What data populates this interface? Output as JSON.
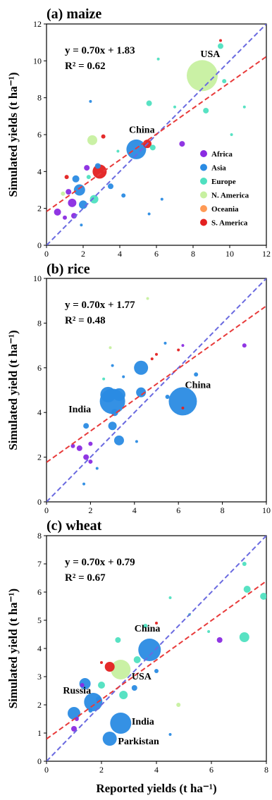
{
  "colors": {
    "Africa": "#8a2be2",
    "Asia": "#2a8be3",
    "Europe": "#4fe0c0",
    "N. America": "#c7f0a0",
    "Oceania": "#ff9a55",
    "S. America": "#e32020",
    "fit_line": "#e83a3a",
    "one_to_one_line": "#6a6ae0"
  },
  "legend": [
    "Africa",
    "Asia",
    "Europe",
    "N. America",
    "Oceania",
    "S. America"
  ],
  "xlabel": "Reported yields (t ha⁻¹)",
  "chart_data": [
    {
      "type": "scatter",
      "title": "(a) maize",
      "ylabel": "Simulated yields (t ha⁻¹)",
      "xlim": [
        0,
        12
      ],
      "ylim": [
        0,
        12
      ],
      "xticks": [
        0,
        2,
        4,
        6,
        8,
        10,
        12
      ],
      "yticks": [
        0,
        2,
        4,
        6,
        8,
        10,
        12
      ],
      "equation": "y = 0.70x + 1.83",
      "r2": "R² = 0.62",
      "fit": {
        "slope": 0.7,
        "intercept": 1.83
      },
      "labels": [
        {
          "text": "USA",
          "x": 8.4,
          "y": 10.2
        },
        {
          "text": "China",
          "x": 4.5,
          "y": 6.1
        }
      ],
      "points": [
        {
          "x": 8.5,
          "y": 9.2,
          "r": 22,
          "region": "N. America"
        },
        {
          "x": 4.9,
          "y": 5.2,
          "r": 14,
          "region": "Asia"
        },
        {
          "x": 2.9,
          "y": 4.0,
          "r": 10,
          "region": "S. America"
        },
        {
          "x": 2.5,
          "y": 5.7,
          "r": 7,
          "region": "N. America"
        },
        {
          "x": 1.8,
          "y": 3.0,
          "r": 8,
          "region": "Asia"
        },
        {
          "x": 1.4,
          "y": 2.3,
          "r": 6,
          "region": "Africa"
        },
        {
          "x": 2.0,
          "y": 2.2,
          "r": 6,
          "region": "Asia"
        },
        {
          "x": 1.6,
          "y": 3.6,
          "r": 5,
          "region": "Asia"
        },
        {
          "x": 2.6,
          "y": 2.5,
          "r": 6,
          "region": "Europe"
        },
        {
          "x": 0.6,
          "y": 1.8,
          "r": 5,
          "region": "Africa"
        },
        {
          "x": 1.2,
          "y": 2.9,
          "r": 4,
          "region": "Africa"
        },
        {
          "x": 1.5,
          "y": 1.6,
          "r": 4,
          "region": "Africa"
        },
        {
          "x": 2.2,
          "y": 4.2,
          "r": 4,
          "region": "Africa"
        },
        {
          "x": 1.0,
          "y": 1.5,
          "r": 3,
          "region": "Africa"
        },
        {
          "x": 2.8,
          "y": 4.3,
          "r": 4,
          "region": "Asia"
        },
        {
          "x": 3.5,
          "y": 3.2,
          "r": 4,
          "region": "Asia"
        },
        {
          "x": 4.2,
          "y": 2.7,
          "r": 3,
          "region": "Asia"
        },
        {
          "x": 5.5,
          "y": 5.5,
          "r": 6,
          "region": "S. America"
        },
        {
          "x": 3.1,
          "y": 5.9,
          "r": 3,
          "region": "S. America"
        },
        {
          "x": 5.8,
          "y": 5.3,
          "r": 4,
          "region": "Europe"
        },
        {
          "x": 5.6,
          "y": 7.7,
          "r": 4,
          "region": "Europe"
        },
        {
          "x": 7.4,
          "y": 5.5,
          "r": 4,
          "region": "Africa"
        },
        {
          "x": 8.7,
          "y": 7.3,
          "r": 4,
          "region": "Europe"
        },
        {
          "x": 9.5,
          "y": 10.8,
          "r": 4,
          "region": "Europe"
        },
        {
          "x": 9.5,
          "y": 11.1,
          "r": 2,
          "region": "S. America"
        },
        {
          "x": 10.1,
          "y": 6.0,
          "r": 2,
          "region": "Europe"
        },
        {
          "x": 10.8,
          "y": 7.5,
          "r": 2,
          "region": "Europe"
        },
        {
          "x": 9.7,
          "y": 8.9,
          "r": 3,
          "region": "Europe"
        },
        {
          "x": 7.0,
          "y": 7.5,
          "r": 2,
          "region": "Europe"
        },
        {
          "x": 6.1,
          "y": 10.1,
          "r": 2,
          "region": "Europe"
        },
        {
          "x": 3.9,
          "y": 5.1,
          "r": 2,
          "region": "Europe"
        },
        {
          "x": 2.4,
          "y": 7.8,
          "r": 2,
          "region": "Asia"
        },
        {
          "x": 6.3,
          "y": 2.5,
          "r": 2,
          "region": "Asia"
        },
        {
          "x": 5.6,
          "y": 1.7,
          "r": 2,
          "region": "Asia"
        },
        {
          "x": 0.9,
          "y": 2.8,
          "r": 3,
          "region": "N. America"
        },
        {
          "x": 1.9,
          "y": 1.1,
          "r": 2,
          "region": "Asia"
        },
        {
          "x": 1.1,
          "y": 3.7,
          "r": 3,
          "region": "S. America"
        },
        {
          "x": 2.3,
          "y": 3.7,
          "r": 3,
          "region": "Europe"
        }
      ]
    },
    {
      "type": "scatter",
      "title": "(b) rice",
      "ylabel": "Simulated yield (t ha⁻¹)",
      "xlim": [
        0,
        10
      ],
      "ylim": [
        0,
        10
      ],
      "xticks": [
        0,
        2,
        4,
        6,
        8,
        10
      ],
      "yticks": [
        0,
        2,
        4,
        6,
        8,
        10
      ],
      "equation": "y = 0.70x + 1.77",
      "r2": "R² = 0.48",
      "fit": {
        "slope": 0.7,
        "intercept": 1.77
      },
      "labels": [
        {
          "text": "China",
          "x": 6.3,
          "y": 5.1
        },
        {
          "text": "India",
          "x": 1.0,
          "y": 4.0
        }
      ],
      "points": [
        {
          "x": 6.2,
          "y": 4.5,
          "r": 20,
          "region": "Asia"
        },
        {
          "x": 3.0,
          "y": 4.5,
          "r": 18,
          "region": "Asia"
        },
        {
          "x": 2.8,
          "y": 4.8,
          "r": 11,
          "region": "Asia"
        },
        {
          "x": 3.3,
          "y": 4.8,
          "r": 9,
          "region": "Asia"
        },
        {
          "x": 4.3,
          "y": 6.0,
          "r": 10,
          "region": "Asia"
        },
        {
          "x": 4.3,
          "y": 4.9,
          "r": 7,
          "region": "Asia"
        },
        {
          "x": 3.3,
          "y": 2.75,
          "r": 7,
          "region": "Asia"
        },
        {
          "x": 3.0,
          "y": 3.4,
          "r": 6,
          "region": "Asia"
        },
        {
          "x": 3.1,
          "y": 4.0,
          "r": 5,
          "region": "Asia"
        },
        {
          "x": 1.8,
          "y": 3.4,
          "r": 4,
          "region": "Asia"
        },
        {
          "x": 1.5,
          "y": 2.4,
          "r": 4,
          "region": "Africa"
        },
        {
          "x": 1.8,
          "y": 2.0,
          "r": 4,
          "region": "Africa"
        },
        {
          "x": 2.0,
          "y": 2.6,
          "r": 3,
          "region": "Africa"
        },
        {
          "x": 1.2,
          "y": 2.5,
          "r": 3,
          "region": "Africa"
        },
        {
          "x": 2.0,
          "y": 1.8,
          "r": 3,
          "region": "Africa"
        },
        {
          "x": 9.0,
          "y": 7.0,
          "r": 3,
          "region": "Africa"
        },
        {
          "x": 6.2,
          "y": 7.0,
          "r": 2,
          "region": "Africa"
        },
        {
          "x": 6.8,
          "y": 5.7,
          "r": 3,
          "region": "Asia"
        },
        {
          "x": 5.5,
          "y": 4.7,
          "r": 3,
          "region": "Asia"
        },
        {
          "x": 5.4,
          "y": 7.1,
          "r": 2,
          "region": "Asia"
        },
        {
          "x": 3.0,
          "y": 6.1,
          "r": 2,
          "region": "Asia"
        },
        {
          "x": 3.5,
          "y": 5.6,
          "r": 2,
          "region": "Asia"
        },
        {
          "x": 4.8,
          "y": 6.4,
          "r": 2,
          "region": "S. America"
        },
        {
          "x": 6.0,
          "y": 6.8,
          "r": 2,
          "region": "S. America"
        },
        {
          "x": 6.2,
          "y": 4.2,
          "r": 2,
          "region": "S. America"
        },
        {
          "x": 5.0,
          "y": 6.6,
          "r": 2,
          "region": "S. America"
        },
        {
          "x": 2.9,
          "y": 6.9,
          "r": 2,
          "region": "N. America"
        },
        {
          "x": 4.6,
          "y": 9.1,
          "r": 2,
          "region": "N. America"
        },
        {
          "x": 2.6,
          "y": 5.5,
          "r": 2,
          "region": "Europe"
        },
        {
          "x": 1.7,
          "y": 0.8,
          "r": 2,
          "region": "Asia"
        },
        {
          "x": 2.3,
          "y": 1.5,
          "r": 2,
          "region": "Asia"
        },
        {
          "x": 4.1,
          "y": 2.7,
          "r": 2,
          "region": "Asia"
        }
      ]
    },
    {
      "type": "scatter",
      "title": "(c) wheat",
      "ylabel": "Simulated yield (t ha⁻¹)",
      "xlim": [
        0,
        8
      ],
      "ylim": [
        0,
        8
      ],
      "xticks": [
        0,
        2,
        4,
        6,
        8
      ],
      "yticks": [
        0,
        1,
        2,
        3,
        4,
        5,
        6,
        7,
        8
      ],
      "equation": "y = 0.70x + 0.79",
      "r2": "R² = 0.67",
      "fit": {
        "slope": 0.7,
        "intercept": 0.79
      },
      "labels": [
        {
          "text": "China",
          "x": 3.2,
          "y": 4.6
        },
        {
          "text": "USA",
          "x": 3.1,
          "y": 2.9
        },
        {
          "text": "Russia",
          "x": 0.6,
          "y": 2.4
        },
        {
          "text": "India",
          "x": 3.1,
          "y": 1.3
        },
        {
          "text": "Parkistan",
          "x": 2.6,
          "y": 0.6
        }
      ],
      "points": [
        {
          "x": 3.75,
          "y": 3.95,
          "r": 16,
          "region": "Asia"
        },
        {
          "x": 2.7,
          "y": 3.25,
          "r": 14,
          "region": "N. America"
        },
        {
          "x": 2.7,
          "y": 1.35,
          "r": 15,
          "region": "Asia"
        },
        {
          "x": 1.7,
          "y": 2.1,
          "r": 13,
          "region": "Asia"
        },
        {
          "x": 2.3,
          "y": 0.8,
          "r": 10,
          "region": "Asia"
        },
        {
          "x": 1.0,
          "y": 1.7,
          "r": 9,
          "region": "Asia"
        },
        {
          "x": 1.4,
          "y": 2.75,
          "r": 8,
          "region": "Asia"
        },
        {
          "x": 2.3,
          "y": 3.35,
          "r": 7,
          "region": "S. America"
        },
        {
          "x": 2.0,
          "y": 2.7,
          "r": 5,
          "region": "Europe"
        },
        {
          "x": 2.8,
          "y": 2.35,
          "r": 6,
          "region": "Europe"
        },
        {
          "x": 3.3,
          "y": 3.6,
          "r": 5,
          "region": "Europe"
        },
        {
          "x": 7.3,
          "y": 6.1,
          "r": 5,
          "region": "Europe"
        },
        {
          "x": 7.2,
          "y": 4.4,
          "r": 7,
          "region": "Europe"
        },
        {
          "x": 7.9,
          "y": 5.85,
          "r": 5,
          "region": "Europe"
        },
        {
          "x": 7.2,
          "y": 7.0,
          "r": 3,
          "region": "Europe"
        },
        {
          "x": 6.3,
          "y": 4.3,
          "r": 4,
          "region": "Africa"
        },
        {
          "x": 1.0,
          "y": 1.15,
          "r": 4,
          "region": "Africa"
        },
        {
          "x": 1.1,
          "y": 1.5,
          "r": 3,
          "region": "Africa"
        },
        {
          "x": 1.3,
          "y": 2.7,
          "r": 3,
          "region": "Africa"
        },
        {
          "x": 1.6,
          "y": 1.8,
          "r": 3,
          "region": "Asia"
        },
        {
          "x": 1.9,
          "y": 2.2,
          "r": 4,
          "region": "Asia"
        },
        {
          "x": 3.2,
          "y": 2.6,
          "r": 4,
          "region": "Asia"
        },
        {
          "x": 4.0,
          "y": 3.2,
          "r": 3,
          "region": "Asia"
        },
        {
          "x": 4.5,
          "y": 0.95,
          "r": 2,
          "region": "Asia"
        },
        {
          "x": 4.5,
          "y": 5.8,
          "r": 2,
          "region": "Europe"
        },
        {
          "x": 3.6,
          "y": 4.8,
          "r": 3,
          "region": "Europe"
        },
        {
          "x": 5.2,
          "y": 5.2,
          "r": 2,
          "region": "Europe"
        },
        {
          "x": 5.9,
          "y": 4.6,
          "r": 2,
          "region": "Europe"
        },
        {
          "x": 4.0,
          "y": 4.9,
          "r": 2,
          "region": "S. America"
        },
        {
          "x": 2.0,
          "y": 3.5,
          "r": 2,
          "region": "S. America"
        },
        {
          "x": 4.8,
          "y": 2.0,
          "r": 3,
          "region": "N. America"
        },
        {
          "x": 2.6,
          "y": 4.3,
          "r": 4,
          "region": "Europe"
        }
      ]
    }
  ]
}
